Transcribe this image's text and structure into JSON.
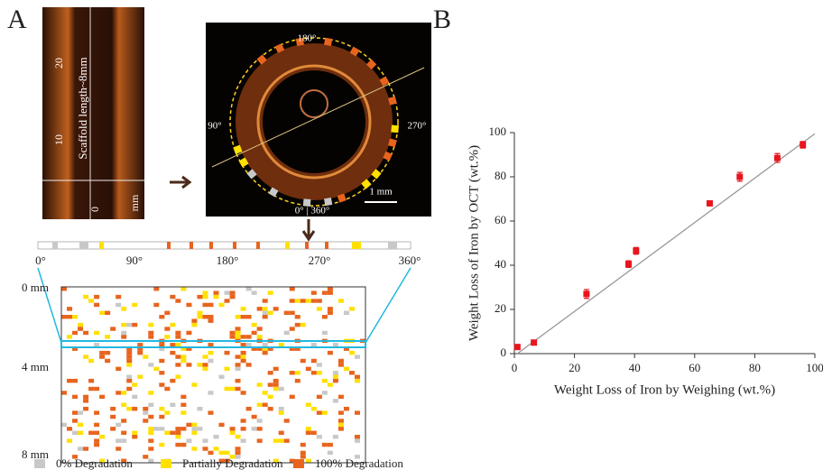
{
  "panel_labels": [
    "A",
    "B"
  ],
  "oct_longitudinal": {
    "ticks": [
      "20",
      "10",
      "0"
    ],
    "unit": "mm",
    "caption": "Scaffold length~8mm"
  },
  "oct_cross_section": {
    "angle_top": "180°",
    "angle_left": "90°",
    "angle_right": "270°",
    "angle_bottom": "0° | 360°",
    "scale_bar": "1 mm"
  },
  "angle_strip": {
    "labels": [
      "0°",
      "90°",
      "180°",
      "270°",
      "360°"
    ]
  },
  "degradation_map": {
    "depth_labels": [
      "0 mm",
      "4 mm",
      "8 mm"
    ]
  },
  "legend": [
    {
      "label": "0% Degradation",
      "color": "#c8c8c8"
    },
    {
      "label": "Partially Degradation",
      "color": "#ffe000"
    },
    {
      "label": "100% Degradation",
      "color": "#e8641e"
    }
  ],
  "chart_data": {
    "type": "scatter",
    "xlabel": "Weight Loss of Iron by Weighing (wt.%)",
    "ylabel": "Weight Loss of Iron by OCT (wt.%)",
    "x": [
      1,
      6.5,
      24,
      38,
      40.5,
      65,
      75,
      87.5,
      96
    ],
    "values": [
      3,
      5,
      27,
      40.5,
      46.5,
      68,
      80,
      88.5,
      94.5
    ],
    "errors": [
      1,
      1,
      2,
      1.5,
      1.5,
      1,
      2,
      2,
      1.5
    ],
    "color": "#e8141e",
    "fit_line": {
      "x": [
        1,
        100
      ],
      "y": [
        0,
        99.5
      ],
      "color": "#999999"
    },
    "xlim": [
      0,
      100
    ],
    "ylim": [
      0,
      100
    ],
    "xticks": [
      0,
      20,
      40,
      60,
      80,
      100
    ],
    "yticks": [
      0,
      20,
      40,
      60,
      80,
      100
    ]
  }
}
